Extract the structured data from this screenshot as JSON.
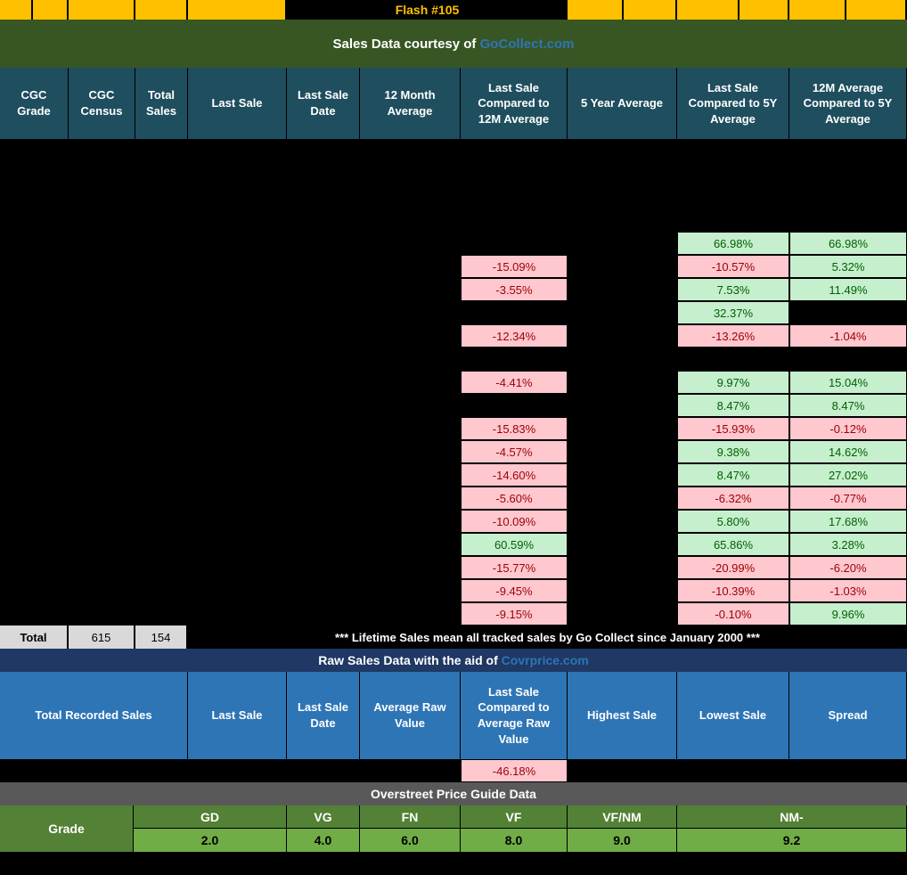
{
  "title": "Flash #105",
  "colors": {
    "accent_yellow": "#ffc000",
    "banner_green": "#375623",
    "header_teal": "#1f4e5f",
    "banner_navy": "#1f3864",
    "header_blue": "#2e75b6",
    "banner_gray": "#595959",
    "link_blue": "#2e75b6",
    "positive_bg": "#c6efce",
    "positive_text": "#006100",
    "negative_bg": "#ffc7ce",
    "negative_text": "#9c0006",
    "total_gray": "#d9d9d9",
    "overstreet_dark_green": "#538135",
    "overstreet_light_green": "#70ad47"
  },
  "banners": {
    "gocollect": {
      "prefix": "Sales Data courtesy of ",
      "link": "GoCollect.com"
    },
    "covrprice": {
      "prefix": "Raw Sales Data with the aid of ",
      "link": "Covrprice.com"
    },
    "overstreet": "Overstreet Price Guide Data"
  },
  "sales_table": {
    "headers": [
      "CGC Grade",
      "CGC Census",
      "Total Sales",
      "Last Sale",
      "Last Sale Date",
      "12 Month Average",
      "Last Sale Compared to 12M Average",
      "5 Year Average",
      "Last Sale Compared to 5Y Average",
      "12M Average Compared to 5Y Average"
    ],
    "rows": [
      {},
      {},
      {},
      {},
      {
        "last_vs_5y": "66.98%",
        "avg12m_vs_5y": "66.98%"
      },
      {
        "last_vs_12m": "-15.09%",
        "last_vs_5y": "-10.57%",
        "avg12m_vs_5y": "5.32%"
      },
      {
        "last_vs_12m": "-3.55%",
        "last_vs_5y": "7.53%",
        "avg12m_vs_5y": "11.49%"
      },
      {
        "last_vs_5y": "32.37%"
      },
      {
        "last_vs_12m": "-12.34%",
        "last_vs_5y": "-13.26%",
        "avg12m_vs_5y": "-1.04%"
      },
      {},
      {
        "last_vs_12m": "-4.41%",
        "last_vs_5y": "9.97%",
        "avg12m_vs_5y": "15.04%"
      },
      {
        "last_vs_5y": "8.47%",
        "avg12m_vs_5y": "8.47%"
      },
      {
        "last_vs_12m": "-15.83%",
        "last_vs_5y": "-15.93%",
        "avg12m_vs_5y": "-0.12%"
      },
      {
        "last_vs_12m": "-4.57%",
        "last_vs_5y": "9.38%",
        "avg12m_vs_5y": "14.62%"
      },
      {
        "last_vs_12m": "-14.60%",
        "last_vs_5y": "8.47%",
        "avg12m_vs_5y": "27.02%"
      },
      {
        "last_vs_12m": "-5.60%",
        "last_vs_5y": "-6.32%",
        "avg12m_vs_5y": "-0.77%"
      },
      {
        "last_vs_12m": "-10.09%",
        "last_vs_5y": "5.80%",
        "avg12m_vs_5y": "17.68%"
      },
      {
        "last_vs_12m": "60.59%",
        "last_vs_5y": "65.86%",
        "avg12m_vs_5y": "3.28%"
      },
      {
        "last_vs_12m": "-15.77%",
        "last_vs_5y": "-20.99%",
        "avg12m_vs_5y": "-6.20%"
      },
      {
        "last_vs_12m": "-9.45%",
        "last_vs_5y": "-10.39%",
        "avg12m_vs_5y": "-1.03%"
      },
      {
        "last_vs_12m": "-9.15%",
        "last_vs_5y": "-0.10%",
        "avg12m_vs_5y": "9.96%"
      }
    ],
    "total": {
      "label": "Total",
      "census": "615",
      "sales": "154",
      "note": "*** Lifetime Sales mean all tracked sales by Go Collect since January 2000 ***"
    }
  },
  "raw_table": {
    "headers": [
      "Total Recorded Sales",
      "Last Sale",
      "Last Sale Date",
      "Average Raw Value",
      "Last Sale Compared to Average Raw Value",
      "Highest Sale",
      "Lowest Sale",
      "Spread"
    ],
    "row": {
      "last_vs_avg": "-46.18%"
    }
  },
  "overstreet": {
    "grade_label": "Grade",
    "grades": [
      "GD",
      "VG",
      "FN",
      "VF",
      "VF/NM",
      "NM-"
    ],
    "values": [
      "2.0",
      "4.0",
      "6.0",
      "8.0",
      "9.0",
      "9.2"
    ]
  }
}
